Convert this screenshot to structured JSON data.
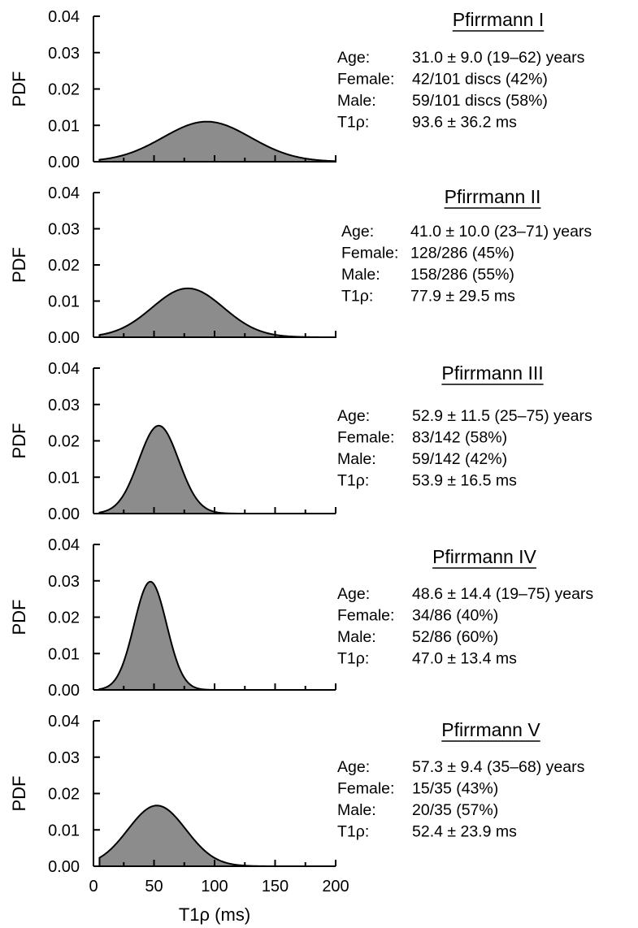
{
  "chart_data": [
    {
      "type": "area",
      "title": "Pfirrmann I",
      "xlabel": "",
      "ylabel": "PDF",
      "xlim": [
        0,
        200
      ],
      "ylim": [
        0,
        0.04
      ],
      "xticks": [
        0,
        50,
        100,
        150,
        200
      ],
      "yticks": [
        "0.00",
        "0.01",
        "0.02",
        "0.03",
        "0.04"
      ],
      "series": [
        {
          "mean": 93.6,
          "sd": 36.2,
          "x": [
            5,
            200
          ]
        }
      ],
      "annotations": [
        {
          "label": "Age:",
          "value": "31.0 ± 9.0 (19–62) years"
        },
        {
          "label": "Female:",
          "value": "42/101 discs (42%)"
        },
        {
          "label": "Male:",
          "value": "59/101 discs (58%)"
        },
        {
          "label": "T1ρ:",
          "value": "93.6 ± 36.2 ms"
        }
      ]
    },
    {
      "type": "area",
      "title": "Pfirrmann II",
      "xlabel": "",
      "ylabel": "PDF",
      "xlim": [
        0,
        200
      ],
      "ylim": [
        0,
        0.04
      ],
      "xticks": [
        0,
        50,
        100,
        150,
        200
      ],
      "yticks": [
        "0.00",
        "0.01",
        "0.02",
        "0.03",
        "0.04"
      ],
      "series": [
        {
          "mean": 77.9,
          "sd": 29.5,
          "x": [
            5,
            200
          ]
        }
      ],
      "annotations": [
        {
          "label": "Age:",
          "value": "41.0 ± 10.0 (23–71) years"
        },
        {
          "label": "Female:",
          "value": "128/286 (45%)"
        },
        {
          "label": "Male:",
          "value": "158/286 (55%)"
        },
        {
          "label": "T1ρ:",
          "value": "77.9 ± 29.5 ms"
        }
      ]
    },
    {
      "type": "area",
      "title": "Pfirrmann III",
      "xlabel": "",
      "ylabel": "PDF",
      "xlim": [
        0,
        200
      ],
      "ylim": [
        0,
        0.04
      ],
      "xticks": [
        0,
        50,
        100,
        150,
        200
      ],
      "yticks": [
        "0.00",
        "0.01",
        "0.02",
        "0.03",
        "0.04"
      ],
      "series": [
        {
          "mean": 53.9,
          "sd": 16.5,
          "x": [
            5,
            200
          ]
        }
      ],
      "annotations": [
        {
          "label": "Age:",
          "value": "52.9 ± 11.5 (25–75) years"
        },
        {
          "label": "Female:",
          "value": "83/142 (58%)"
        },
        {
          "label": "Male:",
          "value": "59/142 (42%)"
        },
        {
          "label": "T1ρ:",
          "value": "53.9 ± 16.5 ms"
        }
      ]
    },
    {
      "type": "area",
      "title": "Pfirrmann IV",
      "xlabel": "",
      "ylabel": "PDF",
      "xlim": [
        0,
        200
      ],
      "ylim": [
        0,
        0.04
      ],
      "xticks": [
        0,
        50,
        100,
        150,
        200
      ],
      "yticks": [
        "0.00",
        "0.01",
        "0.02",
        "0.03",
        "0.04"
      ],
      "series": [
        {
          "mean": 47.0,
          "sd": 13.4,
          "x": [
            5,
            200
          ]
        }
      ],
      "annotations": [
        {
          "label": "Age:",
          "value": "48.6 ± 14.4 (19–75) years"
        },
        {
          "label": "Female:",
          "value": "34/86 (40%)"
        },
        {
          "label": "Male:",
          "value": "52/86 (60%)"
        },
        {
          "label": "T1ρ:",
          "value": "47.0 ± 13.4 ms"
        }
      ]
    },
    {
      "type": "area",
      "title": "Pfirrmann V",
      "xlabel": "T1ρ (ms)",
      "ylabel": "PDF",
      "xlim": [
        0,
        200
      ],
      "ylim": [
        0,
        0.04
      ],
      "xticks": [
        0,
        50,
        100,
        150,
        200
      ],
      "yticks": [
        "0.00",
        "0.01",
        "0.02",
        "0.03",
        "0.04"
      ],
      "series": [
        {
          "mean": 52.4,
          "sd": 23.9,
          "x": [
            5,
            200
          ]
        }
      ],
      "annotations": [
        {
          "label": "Age:",
          "value": "57.3 ± 9.4 (35–68) years"
        },
        {
          "label": "Female:",
          "value": "15/35 (43%)"
        },
        {
          "label": "Male:",
          "value": "20/35 (57%)"
        },
        {
          "label": "T1ρ:",
          "value": "52.4 ± 23.9 ms"
        }
      ]
    }
  ],
  "colors": {
    "fill": "#8c8c8c",
    "stroke": "#000000"
  }
}
